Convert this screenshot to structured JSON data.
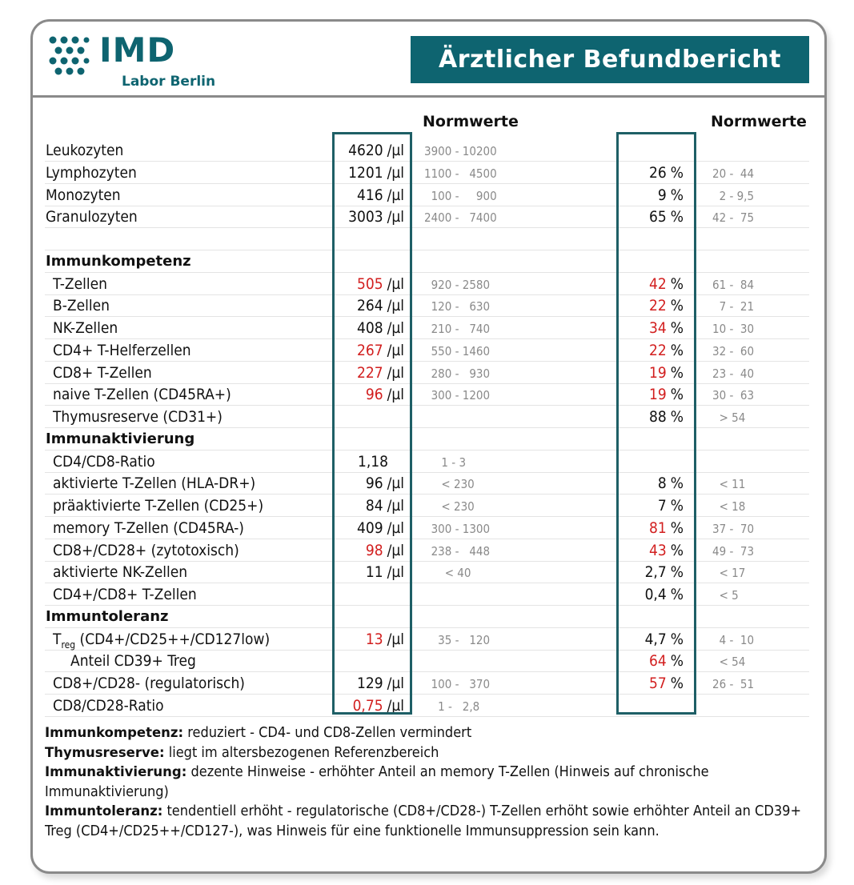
{
  "header": {
    "logo_title": "IMD",
    "logo_subtitle": "Labor Berlin",
    "report_title": "Ärztlicher Befundbericht"
  },
  "columns": {
    "ref_head_1": "Normwerte",
    "ref_head_2": "Normwerte"
  },
  "rows": [
    {
      "label": "Leukozyten",
      "abs": "4620",
      "abs_unit": "/µl",
      "abs_flag": false,
      "ref1": "3900 - 10200",
      "pct": "",
      "pct_flag": false,
      "ref2": ""
    },
    {
      "label": "Lymphozyten",
      "abs": "1201",
      "abs_unit": "/µl",
      "abs_flag": false,
      "ref1": "1100 -   4500",
      "pct": "26",
      "pct_flag": false,
      "ref2": "20 -  44"
    },
    {
      "label": "Monozyten",
      "abs": "416",
      "abs_unit": "/µl",
      "abs_flag": false,
      "ref1": "  100 -     900",
      "pct": "9",
      "pct_flag": false,
      "ref2": "  2 - 9,5"
    },
    {
      "label": "Granulozyten",
      "abs": "3003",
      "abs_unit": "/µl",
      "abs_flag": false,
      "ref1": "2400 -   7400",
      "pct": "65",
      "pct_flag": false,
      "ref2": "42 -  75"
    },
    {
      "section": ""
    },
    {
      "section": "Immunkompetenz"
    },
    {
      "label": "T-Zellen",
      "abs": "505",
      "abs_unit": "/µl",
      "abs_flag": true,
      "ref1": "  920 - 2580",
      "pct": "42",
      "pct_flag": true,
      "ref2": "61 -  84"
    },
    {
      "label": "B-Zellen",
      "abs": "264",
      "abs_unit": "/µl",
      "abs_flag": false,
      "ref1": "  120 -   630",
      "pct": "22",
      "pct_flag": true,
      "ref2": "  7 -  21"
    },
    {
      "label": "NK-Zellen",
      "abs": "408",
      "abs_unit": "/µl",
      "abs_flag": false,
      "ref1": "  210 -   740",
      "pct": "34",
      "pct_flag": true,
      "ref2": "10 -  30"
    },
    {
      "label": "CD4+ T-Helferzellen",
      "abs": "267",
      "abs_unit": "/µl",
      "abs_flag": true,
      "ref1": "  550 - 1460",
      "pct": "22",
      "pct_flag": true,
      "ref2": "32 -  60"
    },
    {
      "label": "CD8+ T-Zellen",
      "abs": "227",
      "abs_unit": "/µl",
      "abs_flag": true,
      "ref1": "  280 -   930",
      "pct": "19",
      "pct_flag": true,
      "ref2": "23 -  40"
    },
    {
      "label": "naive T-Zellen (CD45RA+)",
      "abs": "96",
      "abs_unit": "/µl",
      "abs_flag": true,
      "ref1": "  300 - 1200",
      "pct": "19",
      "pct_flag": true,
      "ref2": "30 -  63"
    },
    {
      "label": "Thymusreserve (CD31+)",
      "abs": "",
      "abs_unit": "",
      "abs_flag": false,
      "ref1": "",
      "pct": "88",
      "pct_flag": false,
      "ref2": "  > 54"
    },
    {
      "section": "Immunaktivierung"
    },
    {
      "label": "CD4/CD8-Ratio",
      "abs": "1,18",
      "abs_unit": "",
      "abs_flag": false,
      "ref1": "     1 - 3",
      "pct": "",
      "pct_flag": false,
      "ref2": ""
    },
    {
      "label": "aktivierte T-Zellen (HLA-DR+)",
      "abs": "96",
      "abs_unit": "/µl",
      "abs_flag": false,
      "ref1": "     < 230",
      "pct": "8",
      "pct_flag": false,
      "ref2": "  < 11"
    },
    {
      "label": "präaktivierte T-Zellen (CD25+)",
      "abs": "84",
      "abs_unit": "/µl",
      "abs_flag": false,
      "ref1": "     < 230",
      "pct": "7",
      "pct_flag": false,
      "ref2": "  < 18"
    },
    {
      "label": "memory T-Zellen (CD45RA-)",
      "abs": "409",
      "abs_unit": "/µl",
      "abs_flag": false,
      "ref1": "  300 - 1300",
      "pct": "81",
      "pct_flag": true,
      "ref2": "37 -  70"
    },
    {
      "label": "CD8+/CD28+ (zytotoxisch)",
      "abs": "98",
      "abs_unit": "/µl",
      "abs_flag": true,
      "ref1": "  238 -   448",
      "pct": "43",
      "pct_flag": true,
      "ref2": "49 -  73"
    },
    {
      "label": "aktivierte NK-Zellen",
      "abs": "11",
      "abs_unit": "/µl",
      "abs_flag": false,
      "ref1": "      < 40",
      "pct": "2,7",
      "pct_flag": false,
      "ref2": "  < 17"
    },
    {
      "label": "CD4+/CD8+ T-Zellen",
      "abs": "",
      "abs_unit": "",
      "abs_flag": false,
      "ref1": "",
      "pct": "0,4",
      "pct_flag": false,
      "ref2": "  < 5"
    },
    {
      "section": "Immuntoleranz"
    },
    {
      "label": "T",
      "label_sub": "reg",
      "label_rest": " (CD4+/CD25++/CD127low)",
      "abs": "13",
      "abs_unit": "/µl",
      "abs_flag": true,
      "ref1": "    35 -   120",
      "pct": "4,7",
      "pct_flag": false,
      "ref2": "  4 -  10"
    },
    {
      "label": "Anteil CD39+ Treg",
      "indent2": true,
      "abs": "",
      "abs_unit": "",
      "abs_flag": false,
      "ref1": "",
      "pct": "64",
      "pct_flag": true,
      "ref2": "  < 54"
    },
    {
      "label": "CD8+/CD28- (regulatorisch)",
      "abs": "129",
      "abs_unit": "/µl",
      "abs_flag": false,
      "ref1": "  100 -   370",
      "pct": "57",
      "pct_flag": true,
      "ref2": "26 -  51"
    },
    {
      "label": "CD8/CD28-Ratio",
      "abs": "0,75",
      "abs_unit": "/µl",
      "abs_flag": true,
      "ref1": "    1 -   2,8",
      "pct": "",
      "pct_flag": false,
      "ref2": ""
    }
  ],
  "notes": [
    {
      "head": "Immunkompetenz:",
      "text": " reduziert - CD4- und CD8-Zellen vermindert"
    },
    {
      "head": "Thymusreserve:",
      "text": " liegt im altersbezogenen Referenzbereich"
    },
    {
      "head": "Immunaktivierung:",
      "text": " dezente Hinweise - erhöhter Anteil an memory T-Zellen (Hinweis auf chronische Immunaktivierung)"
    },
    {
      "head": "Immuntoleranz:",
      "text": " tendentiell erhöht - regulatorische (CD8+/CD28-) T-Zellen erhöht sowie erhöhter Anteil an CD39+ Treg (CD4+/CD25++/CD127-), was Hinweis für eine funktionelle Immunsuppression sein kann."
    }
  ],
  "colors": {
    "brand": "#0e6470",
    "flag": "#d21f1f",
    "reference": "#8a8a8a",
    "frame": "#1e5f66"
  }
}
